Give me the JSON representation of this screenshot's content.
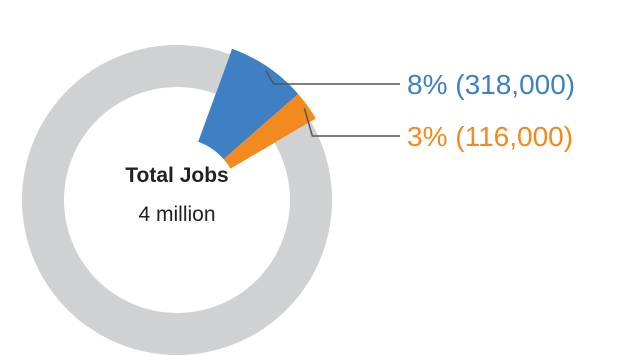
{
  "chart_data": {
    "type": "pie",
    "style": "donut",
    "center": {
      "title": "Total Jobs",
      "subtitle": "4 million"
    },
    "total_label": "4 million",
    "slices": [
      {
        "name": "",
        "label": "8% (318,000)",
        "percent": 8,
        "value": 318000,
        "color": "#3f80c5"
      },
      {
        "name": "",
        "label": "3% (116,000)",
        "percent": 3,
        "value": 116000,
        "color": "#f28a1f"
      },
      {
        "name": "",
        "label": "",
        "percent": 89,
        "value": 3566000,
        "color": "#d0d1d3"
      }
    ],
    "callouts": [
      {
        "text": "8% (318,000)",
        "color": "#3f80c5"
      },
      {
        "text": "3% (116,000)",
        "color": "#f28a1f"
      }
    ],
    "leader_line_color": "#555555",
    "legend": "none",
    "grid": false
  }
}
